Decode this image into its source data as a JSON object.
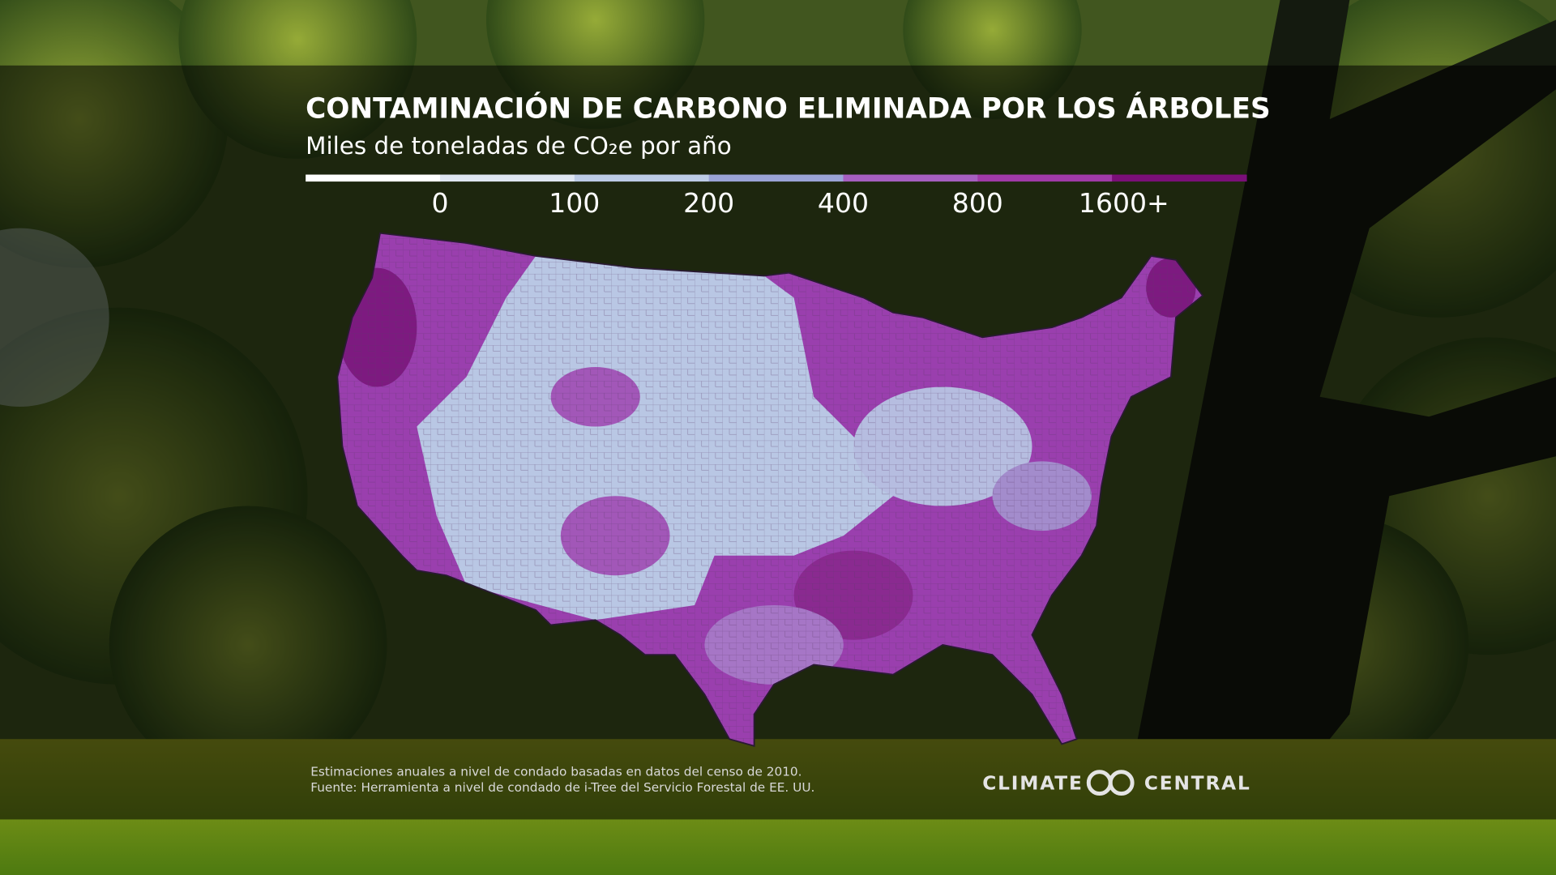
{
  "header": {
    "title": "CONTAMINACIÓN DE CARBONO ELIMINADA POR LOS ÁRBOLES",
    "subtitle": "Miles de toneladas de CO₂e por año"
  },
  "legend": {
    "colors": [
      "#ffffff",
      "#dfe6f2",
      "#bccbe6",
      "#9aa3d6",
      "#a65fc0",
      "#a03aa8",
      "#7a0f78"
    ],
    "labels": [
      "0",
      "100",
      "200",
      "400",
      "800",
      "1600+"
    ]
  },
  "footer": {
    "notes": [
      "Estimaciones anuales a nivel de condado basadas en datos del censo de 2010.",
      "Fuente: Herramienta a nivel de condado de i-Tree del Servicio Forestal de EE. UU."
    ],
    "logo": [
      "CLIMATE",
      "CENTRAL"
    ]
  }
}
